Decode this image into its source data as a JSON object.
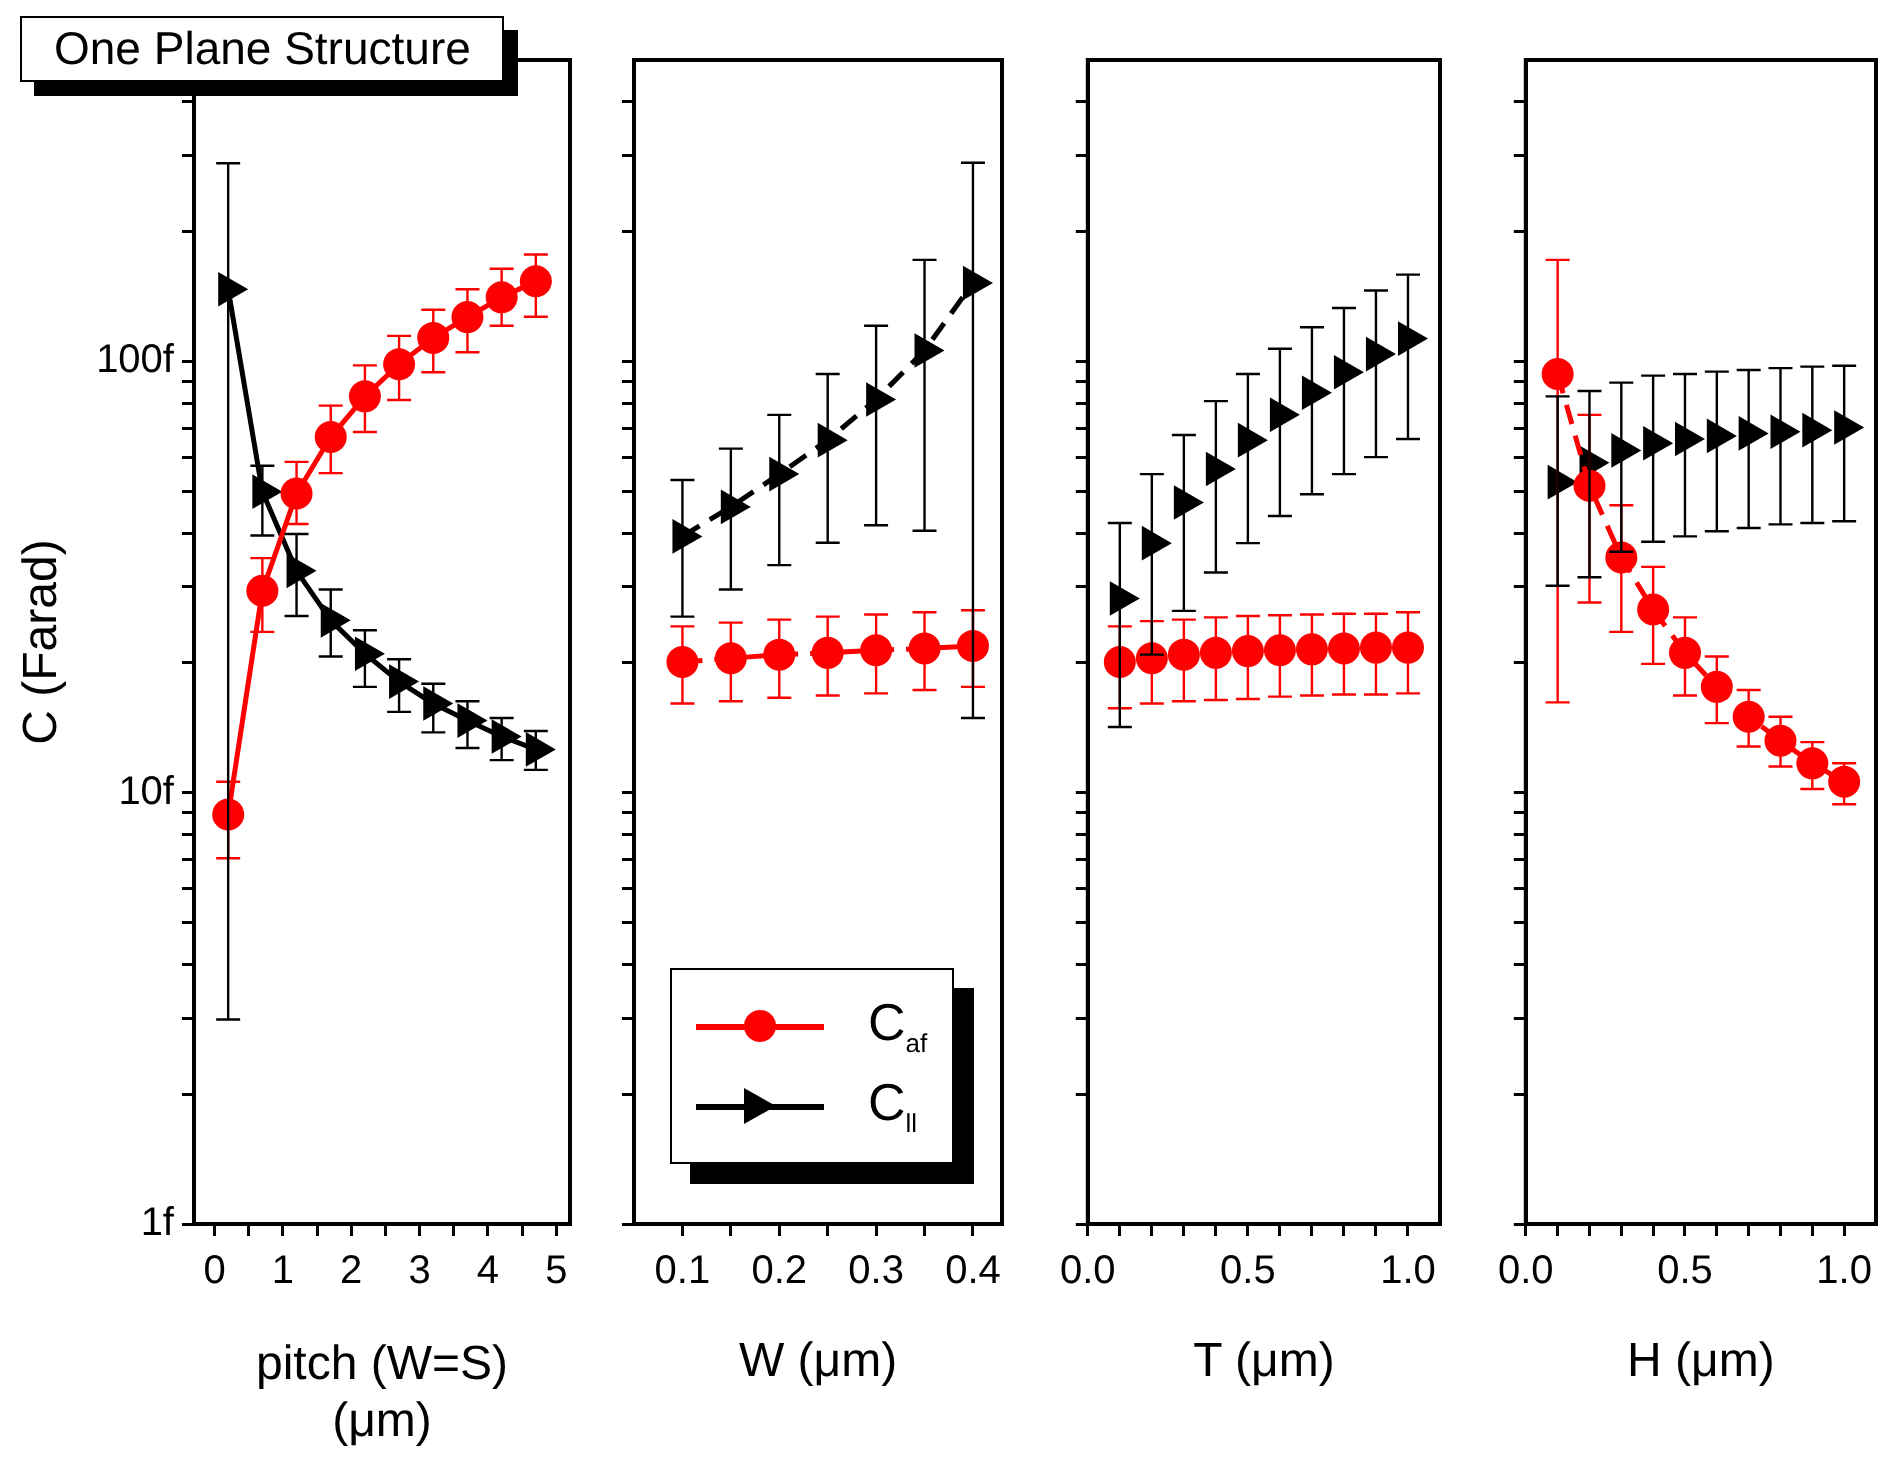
{
  "chart_data": [
    {
      "type": "line",
      "title": "One Plane Structure",
      "xlabel": "pitch (W=S) (μm)",
      "ylabel": "C (Farad)",
      "log": true,
      "grid": false,
      "legend": false,
      "x": [
        0.2,
        0.7,
        1.2,
        1.7,
        2.2,
        2.7,
        3.2,
        3.7,
        4.2,
        4.7
      ],
      "xlim": [
        -0.3,
        5.2
      ],
      "xticks": [
        0,
        {
          "value": 0.5,
          "label": null
        },
        1,
        {
          "value": 1.5,
          "label": null
        },
        2,
        {
          "value": 2.5,
          "label": null
        },
        3,
        {
          "value": 3.5,
          "label": null
        },
        4,
        {
          "value": 4.5,
          "label": null
        },
        5
      ],
      "ylim": [
        1,
        500
      ],
      "yticks": [
        {
          "value": 1,
          "label": "1f"
        },
        {
          "value": 2,
          "label": null
        },
        {
          "value": 3,
          "label": null
        },
        {
          "value": 4,
          "label": null
        },
        {
          "value": 5,
          "label": null
        },
        {
          "value": 6,
          "label": null
        },
        {
          "value": 7,
          "label": null
        },
        {
          "value": 8,
          "label": null
        },
        {
          "value": 9,
          "label": null
        },
        {
          "value": 10,
          "label": "10f"
        },
        {
          "value": 20,
          "label": null
        },
        {
          "value": 30,
          "label": null
        },
        {
          "value": 40,
          "label": null
        },
        {
          "value": 50,
          "label": null
        },
        {
          "value": 60,
          "label": null
        },
        {
          "value": 70,
          "label": null
        },
        {
          "value": 80,
          "label": null
        },
        {
          "value": 90,
          "label": null
        },
        {
          "value": 100,
          "label": "100f"
        },
        {
          "value": 200,
          "label": null
        },
        {
          "value": 300,
          "label": null
        },
        {
          "value": 400,
          "label": null
        }
      ],
      "series": [
        {
          "color": "#ff0000",
          "marker": "circle",
          "line_style": "solid",
          "values": [
            8.9,
            29.4,
            49.4,
            66.8,
            83,
            98.5,
            113.4,
            126.7,
            140.8,
            153.4
          ],
          "errors": [
            [
              7.05,
              10.6
            ],
            [
              23.6,
              35
            ],
            [
              42,
              58.5
            ],
            [
              55.1,
              79
            ],
            [
              68.6,
              97.9
            ],
            [
              81.4,
              114.6
            ],
            [
              94.4,
              131.8
            ],
            [
              105,
              147
            ],
            [
              121,
              164
            ],
            [
              127,
              177
            ]
          ]
        },
        {
          "color": "#000000",
          "marker": "triangle",
          "line_style": "solid",
          "values": [
            147,
            49.9,
            32.7,
            25.1,
            21,
            18.1,
            16.1,
            14.7,
            13.5,
            12.6
          ],
          "errors": [
            [
              2.98,
              288
            ],
            [
              39.5,
              57.3
            ],
            [
              25.7,
              39.8
            ],
            [
              20.7,
              29.6
            ],
            [
              17.6,
              23.8
            ],
            [
              15.4,
              20.4
            ],
            [
              13.8,
              17.9
            ],
            [
              12.7,
              16.3
            ],
            [
              11.9,
              14.9
            ],
            [
              11.3,
              13.9
            ]
          ]
        }
      ]
    },
    {
      "type": "line",
      "xlabel": "W (μm)",
      "log": true,
      "grid": false,
      "legend": "bottom left",
      "tick_labels": "x",
      "x": [
        0.1,
        0.15,
        0.2,
        0.25,
        0.3,
        0.35,
        0.4
      ],
      "xlim": [
        0.05,
        0.43
      ],
      "xticks": [
        0.1,
        {
          "value": 0.15,
          "label": null
        },
        0.2,
        {
          "value": 0.25,
          "label": null
        },
        0.3,
        {
          "value": 0.35,
          "label": null
        },
        0.4
      ],
      "ylim": [
        1,
        500
      ],
      "yticks": [
        {
          "value": 1,
          "label": null
        },
        {
          "value": 2,
          "label": null
        },
        {
          "value": 3,
          "label": null
        },
        {
          "value": 4,
          "label": null
        },
        {
          "value": 5,
          "label": null
        },
        {
          "value": 6,
          "label": null
        },
        {
          "value": 7,
          "label": null
        },
        {
          "value": 8,
          "label": null
        },
        {
          "value": 9,
          "label": null
        },
        {
          "value": 10,
          "label": null
        },
        {
          "value": 20,
          "label": null
        },
        {
          "value": 30,
          "label": null
        },
        {
          "value": 40,
          "label": null
        },
        {
          "value": 50,
          "label": null
        },
        {
          "value": 60,
          "label": null
        },
        {
          "value": 70,
          "label": null
        },
        {
          "value": 80,
          "label": null
        },
        {
          "value": 90,
          "label": null
        },
        {
          "value": 100,
          "label": null
        },
        {
          "value": 200,
          "label": null
        },
        {
          "value": 300,
          "label": null
        },
        {
          "value": 400,
          "label": null
        }
      ],
      "series": [
        {
          "name": "C$_{af}$",
          "color": "#ff0000",
          "marker": "circle",
          "line_style": "dashed",
          "values": [
            20.1,
            20.5,
            20.9,
            21.1,
            21.4,
            21.6,
            21.9
          ],
          "errors": [
            [
              16.1,
              24.3
            ],
            [
              16.3,
              24.8
            ],
            [
              16.6,
              25.2
            ],
            [
              16.8,
              25.6
            ],
            [
              17,
              25.9
            ],
            [
              17.3,
              26.2
            ],
            [
              17.6,
              26.5
            ]
          ]
        },
        {
          "name": "C$_{ll}$",
          "color": "#000000",
          "marker": "triangle",
          "line_style": "dashed",
          "values": [
            39.3,
            46,
            54.8,
            65.7,
            81.6,
            106,
            152
          ],
          "errors": [
            [
              25.6,
              53.1
            ],
            [
              29.6,
              62.8
            ],
            [
              33.7,
              75.2
            ],
            [
              38,
              93.5
            ],
            [
              41.7,
              121
            ],
            [
              40.5,
              172
            ],
            [
              14.9,
              289
            ]
          ]
        }
      ]
    },
    {
      "type": "line",
      "xlabel": "T (μm)",
      "log": true,
      "grid": false,
      "legend": false,
      "tick_labels": "x",
      "x": [
        0.1,
        0.2,
        0.3,
        0.4,
        0.5,
        0.6,
        0.7,
        0.8,
        0.9,
        1.0
      ],
      "xlim": [
        0,
        1.1
      ],
      "xticks": [
        {
          "value": 0,
          "label": "0.0"
        },
        {
          "value": 0.1,
          "label": null
        },
        {
          "value": 0.2,
          "label": null
        },
        {
          "value": 0.3,
          "label": null
        },
        {
          "value": 0.4,
          "label": null
        },
        0.5,
        {
          "value": 0.6,
          "label": null
        },
        {
          "value": 0.7,
          "label": null
        },
        {
          "value": 0.8,
          "label": null
        },
        {
          "value": 0.9,
          "label": null
        },
        {
          "value": 1,
          "label": "1.0"
        }
      ],
      "ylim": [
        1,
        500
      ],
      "yticks": [
        {
          "value": 1,
          "label": null
        },
        {
          "value": 2,
          "label": null
        },
        {
          "value": 3,
          "label": null
        },
        {
          "value": 4,
          "label": null
        },
        {
          "value": 5,
          "label": null
        },
        {
          "value": 6,
          "label": null
        },
        {
          "value": 7,
          "label": null
        },
        {
          "value": 8,
          "label": null
        },
        {
          "value": 9,
          "label": null
        },
        {
          "value": 10,
          "label": null
        },
        {
          "value": 20,
          "label": null
        },
        {
          "value": 30,
          "label": null
        },
        {
          "value": 40,
          "label": null
        },
        {
          "value": 50,
          "label": null
        },
        {
          "value": 60,
          "label": null
        },
        {
          "value": 70,
          "label": null
        },
        {
          "value": 80,
          "label": null
        },
        {
          "value": 90,
          "label": null
        },
        {
          "value": 100,
          "label": null
        },
        {
          "value": 200,
          "label": null
        },
        {
          "value": 300,
          "label": null
        },
        {
          "value": 400,
          "label": null
        }
      ],
      "series": [
        {
          "type": "scatter",
          "color": "#ff0000",
          "marker": "circle",
          "values": [
            20.1,
            20.5,
            20.9,
            21.1,
            21.3,
            21.4,
            21.5,
            21.6,
            21.7,
            21.7
          ],
          "errors": [
            [
              15.7,
              24.3
            ],
            [
              16.1,
              25
            ],
            [
              16.3,
              25.2
            ],
            [
              16.4,
              25.5
            ],
            [
              16.5,
              25.7
            ],
            [
              16.7,
              25.8
            ],
            [
              16.8,
              25.9
            ],
            [
              16.9,
              26
            ],
            [
              16.9,
              26
            ],
            [
              17,
              26.2
            ]
          ]
        },
        {
          "type": "scatter",
          "color": "#000000",
          "marker": "triangle",
          "values": [
            28.2,
            37.9,
            47.1,
            56.3,
            65.7,
            75.2,
            84.6,
            94.4,
            104,
            113
          ],
          "errors": [
            [
              14.2,
              42.2
            ],
            [
              20.9,
              54.8
            ],
            [
              26.4,
              67.5
            ],
            [
              32.4,
              80.9
            ],
            [
              37.9,
              93.5
            ],
            [
              43.8,
              107
            ],
            [
              49.2,
              120
            ],
            [
              54.8,
              133
            ],
            [
              60,
              146
            ],
            [
              66.1,
              159
            ]
          ]
        }
      ]
    },
    {
      "type": "line",
      "xlabel": "H (μm)",
      "log": true,
      "grid": false,
      "legend": false,
      "tick_labels": "x",
      "x": [
        0.1,
        0.2,
        0.3,
        0.4,
        0.5,
        0.6,
        0.7,
        0.8,
        0.9,
        1.0
      ],
      "xlim": [
        0,
        1.1
      ],
      "xticks": [
        {
          "value": 0,
          "label": "0.0"
        },
        {
          "value": 0.1,
          "label": null
        },
        {
          "value": 0.2,
          "label": null
        },
        {
          "value": 0.3,
          "label": null
        },
        {
          "value": 0.4,
          "label": null
        },
        0.5,
        {
          "value": 0.6,
          "label": null
        },
        {
          "value": 0.7,
          "label": null
        },
        {
          "value": 0.8,
          "label": null
        },
        {
          "value": 0.9,
          "label": null
        },
        {
          "value": 1,
          "label": "1.0"
        }
      ],
      "ylim": [
        1,
        500
      ],
      "yticks": [
        {
          "value": 1,
          "label": null
        },
        {
          "value": 2,
          "label": null
        },
        {
          "value": 3,
          "label": null
        },
        {
          "value": 4,
          "label": null
        },
        {
          "value": 5,
          "label": null
        },
        {
          "value": 6,
          "label": null
        },
        {
          "value": 7,
          "label": null
        },
        {
          "value": 8,
          "label": null
        },
        {
          "value": 9,
          "label": null
        },
        {
          "value": 10,
          "label": null
        },
        {
          "value": 20,
          "label": null
        },
        {
          "value": 30,
          "label": null
        },
        {
          "value": 40,
          "label": null
        },
        {
          "value": 50,
          "label": null
        },
        {
          "value": 60,
          "label": null
        },
        {
          "value": 70,
          "label": null
        },
        {
          "value": 80,
          "label": null
        },
        {
          "value": 90,
          "label": null
        },
        {
          "value": 100,
          "label": null
        },
        {
          "value": 200,
          "label": null
        },
        {
          "value": 300,
          "label": null
        },
        {
          "value": 400,
          "label": null
        }
      ],
      "series": [
        {
          "color": "#ff0000",
          "marker": "circle",
          "line_style": "dashed",
          "values": [
            93.5,
            51.5,
            35.1,
            26.6,
            21.1,
            17.6,
            15,
            13.2,
            11.7,
            10.6
          ],
          "errors": [
            [
              16.2,
              172
            ],
            [
              27.6,
              75.2
            ],
            [
              23.6,
              46.4
            ],
            [
              19.9,
              33.4
            ],
            [
              16.8,
              25.5
            ],
            [
              14.5,
              20.7
            ],
            [
              12.8,
              17.3
            ],
            [
              11.5,
              15
            ],
            [
              10.2,
              13.1
            ],
            [
              9.4,
              11.7
            ]
          ]
        },
        {
          "type": "scatter",
          "color": "#000000",
          "marker": "triangle",
          "values": [
            52.5,
            58.2,
            62.2,
            64.6,
            66.1,
            67.2,
            68.1,
            68.7,
            69.3,
            70.3
          ],
          "errors": [
            [
              30.2,
              83
            ],
            [
              31.6,
              85.4
            ],
            [
              36.2,
              89.3
            ],
            [
              38.2,
              92.7
            ],
            [
              39.3,
              93.5
            ],
            [
              40.4,
              94.7
            ],
            [
              41.1,
              95.5
            ],
            [
              41.9,
              96.5
            ],
            [
              42.2,
              97.3
            ],
            [
              42.6,
              97.7
            ]
          ]
        }
      ]
    }
  ]
}
